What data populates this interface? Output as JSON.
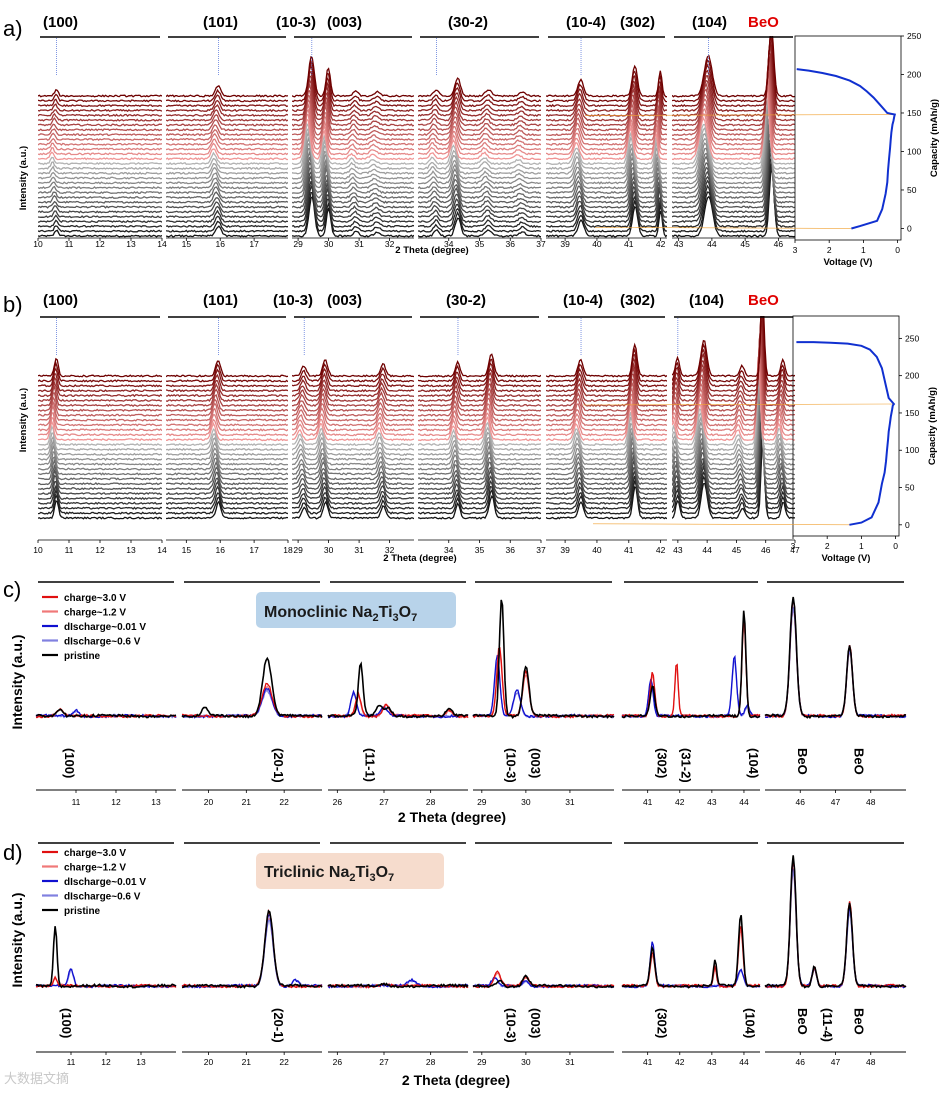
{
  "figure": {
    "panel_letters": [
      "a)",
      "b)",
      "c)",
      "d)"
    ],
    "watermark": "大数据文摘"
  },
  "chart_data": [
    {
      "panel": "a)",
      "type": "line",
      "description": "Stacked in-situ XRD patterns (grey = discharge, red = charge)",
      "xlabel": "2 Theta (degree)",
      "ylabel": "Intensity (a.u.)",
      "n_patterns": 30,
      "segments": [
        {
          "range": [
            10,
            14
          ],
          "ticks": [
            "10",
            "11",
            "12",
            "13",
            "14"
          ],
          "labels": [
            "(100)"
          ]
        },
        {
          "range": [
            14.4,
            18
          ],
          "ticks": [
            "15",
            "16",
            "17"
          ],
          "labels": [
            "(101)"
          ]
        },
        {
          "range": [
            28.8,
            32.8
          ],
          "ticks": [
            "29",
            "30",
            "31",
            "32"
          ],
          "labels": [
            "(10-3)",
            "(003)"
          ]
        },
        {
          "range": [
            33,
            37
          ],
          "ticks": [
            "34",
            "35",
            "36",
            "37"
          ],
          "labels": [
            "(30-2)"
          ]
        },
        {
          "range": [
            38.4,
            42.2
          ],
          "ticks": [
            "39",
            "40",
            "41",
            "42"
          ],
          "labels": [
            "(10-4)",
            "(302)"
          ]
        },
        {
          "range": [
            42.8,
            46.5
          ],
          "ticks": [
            "43",
            "44",
            "45",
            "46"
          ],
          "labels": [
            "(104)",
            "BeO"
          ]
        }
      ],
      "voltage_profile": {
        "xlabel": "Voltage (V)",
        "ylabel": "Capacity (mAh/g)",
        "xticks": [
          "3",
          "2",
          "1",
          "0"
        ],
        "yticks": [
          "0",
          "50",
          "100",
          "150",
          "200",
          "250"
        ],
        "xlim": [
          3,
          -0.1
        ],
        "ylim": [
          -15,
          250
        ],
        "discharge": {
          "voltage": [
            1.35,
            1.1,
            0.6,
            0.45,
            0.35,
            0.3,
            0.28,
            0.25,
            0.22,
            0.2,
            0.18,
            0.15,
            0.12,
            0.1,
            0.08
          ],
          "capacity": [
            0,
            3,
            10,
            25,
            45,
            60,
            75,
            90,
            105,
            115,
            125,
            135,
            140,
            145,
            148
          ]
        },
        "charge": {
          "voltage": [
            0.08,
            0.3,
            0.5,
            0.7,
            0.9,
            1.1,
            1.4,
            1.8,
            2.2,
            2.6,
            2.95
          ],
          "capacity": [
            148,
            150,
            160,
            170,
            178,
            185,
            192,
            198,
            202,
            205,
            207
          ]
        }
      }
    },
    {
      "panel": "b)",
      "type": "line",
      "description": "Stacked in-situ XRD patterns (grey = discharge, red = charge)",
      "xlabel": "2 Theta (degree)",
      "ylabel": "Intensity (a.u.)",
      "n_patterns": 30,
      "segments": [
        {
          "range": [
            10,
            14
          ],
          "ticks": [
            "10",
            "11",
            "12",
            "13",
            "14"
          ],
          "labels": [
            "(100)"
          ]
        },
        {
          "range": [
            14.4,
            18
          ],
          "ticks": [
            "15",
            "16",
            "17",
            "18"
          ],
          "labels": [
            "(101)"
          ]
        },
        {
          "range": [
            28.8,
            32.8
          ],
          "ticks": [
            "29",
            "30",
            "31",
            "32"
          ],
          "labels": [
            "(10-3)",
            "(003)"
          ]
        },
        {
          "range": [
            33,
            37
          ],
          "ticks": [
            "34",
            "35",
            "36",
            "37"
          ],
          "labels": [
            "(30-2)"
          ]
        },
        {
          "range": [
            38.4,
            42.2
          ],
          "ticks": [
            "39",
            "40",
            "41",
            "42"
          ],
          "labels": [
            "(10-4)",
            "(302)"
          ]
        },
        {
          "range": [
            42.8,
            47
          ],
          "ticks": [
            "43",
            "44",
            "45",
            "46",
            "47"
          ],
          "labels": [
            "(104)",
            "BeO"
          ]
        }
      ],
      "voltage_profile": {
        "xlabel": "Voltage (V)",
        "ylabel": "Capacity (mAh/g)",
        "xticks": [
          "3",
          "2",
          "1",
          "0"
        ],
        "yticks": [
          "0",
          "50",
          "100",
          "150",
          "200",
          "250"
        ],
        "xlim": [
          3,
          -0.1
        ],
        "ylim": [
          -15,
          280
        ],
        "discharge": {
          "voltage": [
            1.35,
            1.0,
            0.7,
            0.5,
            0.4,
            0.32,
            0.28,
            0.25,
            0.22,
            0.2,
            0.17,
            0.14,
            0.1,
            0.08,
            0.05
          ],
          "capacity": [
            0,
            3,
            10,
            30,
            55,
            70,
            85,
            100,
            115,
            125,
            135,
            145,
            155,
            160,
            162
          ]
        },
        "charge": {
          "voltage": [
            0.05,
            0.2,
            0.3,
            0.4,
            0.55,
            0.75,
            1.0,
            1.4,
            1.9,
            2.4,
            2.9
          ],
          "capacity": [
            162,
            170,
            190,
            210,
            225,
            235,
            240,
            243,
            244,
            245,
            245
          ]
        }
      }
    },
    {
      "panel": "c)",
      "type": "line",
      "title": "Monoclinic Na2Ti3O7",
      "xlabel": "2 Theta (degree)",
      "ylabel": "Intensity (a.u.)",
      "legend": [
        "charge~3.0 V",
        "charge~1.2 V",
        "dIscharge~0.01 V",
        "dIscharge~0.6 V",
        "pristine"
      ],
      "legend_colors": [
        "#e01010",
        "#f07878",
        "#1010d0",
        "#8080e0",
        "#000000"
      ],
      "segments": [
        {
          "range": [
            10,
            13.5
          ],
          "ticks": [
            "11",
            "12",
            "13"
          ],
          "labels": [
            "(100)"
          ]
        },
        {
          "range": [
            19.3,
            23
          ],
          "ticks": [
            "20",
            "21",
            "22"
          ],
          "labels": [
            "(20-1)"
          ]
        },
        {
          "range": [
            25.8,
            28.8
          ],
          "ticks": [
            "26",
            "27",
            "28"
          ],
          "labels": [
            "(11-1)"
          ]
        },
        {
          "range": [
            28.8,
            32
          ],
          "ticks": [
            "29",
            "30",
            "31"
          ],
          "labels": [
            "(10-3)",
            "(003)"
          ]
        },
        {
          "range": [
            40.2,
            44.5
          ],
          "ticks": [
            "41",
            "42",
            "43",
            "44"
          ],
          "labels": [
            "(302)",
            "(31-2)",
            "(104)"
          ]
        },
        {
          "range": [
            45,
            49
          ],
          "ticks": [
            "46",
            "47",
            "48"
          ],
          "labels": [
            "BeO",
            "BeO"
          ]
        }
      ]
    },
    {
      "panel": "d)",
      "type": "line",
      "title": "Triclinic Na2Ti3O7",
      "xlabel": "2 Theta (degree)",
      "ylabel": "Intensity (a.u.)",
      "legend": [
        "charge~3.0 V",
        "charge~1.2 V",
        "dIscharge~0.01 V",
        "dIscharge~0.6 V",
        "pristine"
      ],
      "legend_colors": [
        "#e01010",
        "#f07878",
        "#1010d0",
        "#8080e0",
        "#000000"
      ],
      "segments": [
        {
          "range": [
            10,
            14
          ],
          "ticks": [
            "11",
            "12",
            "13"
          ],
          "labels": [
            "(100)"
          ]
        },
        {
          "range": [
            19.3,
            23
          ],
          "ticks": [
            "20",
            "21",
            "22"
          ],
          "labels": [
            "(20-1)"
          ]
        },
        {
          "range": [
            25.8,
            28.8
          ],
          "ticks": [
            "26",
            "27",
            "28"
          ],
          "labels": []
        },
        {
          "range": [
            28.8,
            32
          ],
          "ticks": [
            "29",
            "30",
            "31"
          ],
          "labels": [
            "(10-3)",
            "(003)"
          ]
        },
        {
          "range": [
            40.2,
            44.5
          ],
          "ticks": [
            "41",
            "42",
            "43",
            "44"
          ],
          "labels": [
            "(302)",
            "(104)"
          ]
        },
        {
          "range": [
            45,
            49
          ],
          "ticks": [
            "46",
            "47",
            "48"
          ],
          "labels": [
            "BeO",
            "(11-4)",
            "BeO"
          ]
        }
      ]
    }
  ],
  "panel_titles": {
    "c": {
      "prefix": "Monoclinic Na",
      "s1": "2",
      "mid": "Ti",
      "s2": "3",
      "end": "O",
      "s3": "7"
    },
    "d": {
      "prefix": "Triclinic Na",
      "s1": "2",
      "mid": "Ti",
      "s2": "3",
      "end": "O",
      "s3": "7"
    }
  }
}
